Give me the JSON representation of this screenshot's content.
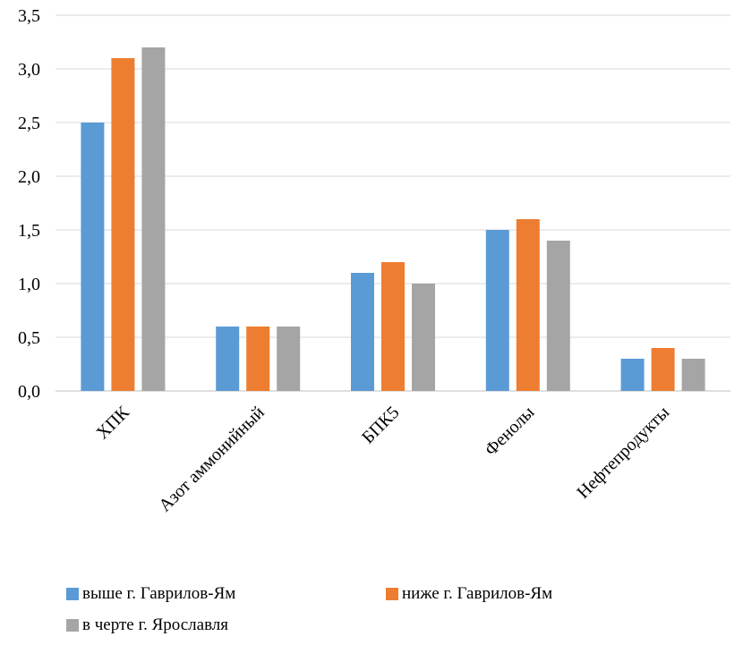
{
  "chart_data": {
    "type": "bar",
    "title": "",
    "xlabel": "",
    "ylabel": "",
    "ylim": [
      0,
      3.5
    ],
    "yticks": [
      "0,0",
      "0,5",
      "1,0",
      "1,5",
      "2,0",
      "2,5",
      "3,0",
      "3,5"
    ],
    "ytick_values": [
      0,
      0.5,
      1.0,
      1.5,
      2.0,
      2.5,
      3.0,
      3.5
    ],
    "grid": true,
    "legend_position": "bottom",
    "categories": [
      "ХПК",
      "Азот аммонийный",
      "БПК5",
      "Фенолы",
      "Нефтепродукты"
    ],
    "series": [
      {
        "name": "выше г. Гаврилов-Ям",
        "color": "#5b9bd5",
        "values": [
          2.5,
          0.6,
          1.1,
          1.5,
          0.3
        ]
      },
      {
        "name": "ниже г. Гаврилов-Ям",
        "color": "#ed7d31",
        "values": [
          3.1,
          0.6,
          1.2,
          1.6,
          0.4
        ]
      },
      {
        "name": "в черте г. Ярославля",
        "color": "#a5a5a5",
        "values": [
          3.2,
          0.6,
          1.0,
          1.4,
          0.3
        ]
      }
    ]
  }
}
